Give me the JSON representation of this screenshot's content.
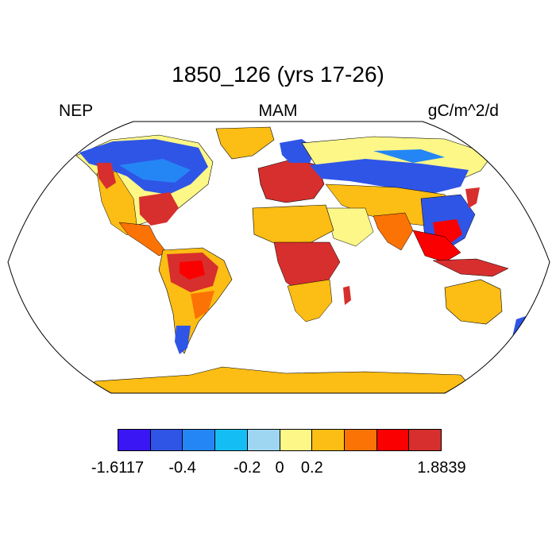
{
  "title": "1850_126 (yrs 17-26)",
  "left_label": "NEP",
  "center_label": "MAM",
  "right_label": "gC/m^2/d",
  "legend": {
    "colors": [
      "#3a16f5",
      "#2f55e6",
      "#2486f5",
      "#14bef5",
      "#9ed6f2",
      "#fdf787",
      "#fcbd14",
      "#fc7305",
      "#fb0000",
      "#d62f2d"
    ],
    "labels": [
      "-1.6117",
      "-0.4",
      "-0.2",
      "0",
      "0.2",
      "1.8839"
    ]
  },
  "map": {
    "projection": "Robinson",
    "ocean_color": "#ffffff",
    "coastline_color": "#000000",
    "regions": [
      {
        "name": "North America boreal",
        "color": "#2f55e6"
      },
      {
        "name": "Eastern USA",
        "color": "#d62f2d"
      },
      {
        "name": "Western USA",
        "color": "#fc7305"
      },
      {
        "name": "Greenland",
        "color": "#fcbd14"
      },
      {
        "name": "Europe",
        "color": "#d62f2d"
      },
      {
        "name": "Siberia",
        "color": "#2f55e6"
      },
      {
        "name": "Sahara",
        "color": "#fcbd14"
      },
      {
        "name": "Central Africa",
        "color": "#d62f2d"
      },
      {
        "name": "Amazon",
        "color": "#d62f2d"
      },
      {
        "name": "Australia",
        "color": "#fcbd14"
      },
      {
        "name": "Antarctica",
        "color": "#fcbd14"
      }
    ]
  }
}
